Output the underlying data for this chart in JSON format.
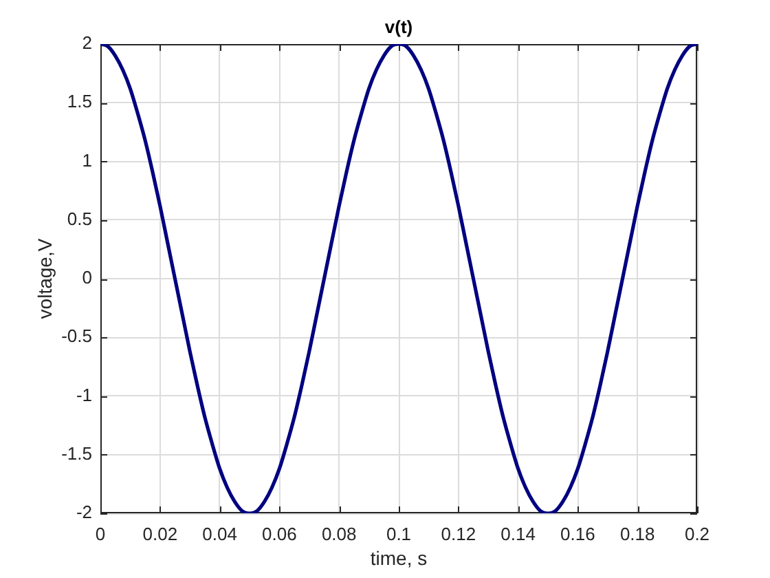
{
  "chart_data": {
    "type": "line",
    "title": "v(t)",
    "xlabel": "time, s",
    "ylabel": "voltage,V",
    "x": [
      0,
      0.0025,
      0.005,
      0.0075,
      0.01,
      0.0125,
      0.015,
      0.0175,
      0.02,
      0.0225,
      0.025,
      0.0275,
      0.03,
      0.0325,
      0.035,
      0.0375,
      0.04,
      0.0425,
      0.045,
      0.0475,
      0.05,
      0.0525,
      0.055,
      0.0575,
      0.06,
      0.0625,
      0.065,
      0.0675,
      0.07,
      0.0725,
      0.075,
      0.0775,
      0.08,
      0.0825,
      0.085,
      0.0875,
      0.09,
      0.0925,
      0.095,
      0.0975,
      0.1,
      0.1025,
      0.105,
      0.1075,
      0.11,
      0.1125,
      0.115,
      0.1175,
      0.12,
      0.1225,
      0.125,
      0.1275,
      0.13,
      0.1325,
      0.135,
      0.1375,
      0.14,
      0.1425,
      0.145,
      0.1475,
      0.15,
      0.1525,
      0.155,
      0.1575,
      0.16,
      0.1625,
      0.165,
      0.1675,
      0.17,
      0.1725,
      0.175,
      0.1775,
      0.18,
      0.1825,
      0.185,
      0.1875,
      0.19,
      0.1925,
      0.195,
      0.1975,
      0.2
    ],
    "series": [
      {
        "color": "#000080",
        "values": [
          2,
          1.98,
          1.9,
          1.78,
          1.62,
          1.41,
          1.18,
          0.91,
          0.62,
          0.31,
          0,
          -0.31,
          -0.62,
          -0.91,
          -1.18,
          -1.41,
          -1.62,
          -1.78,
          -1.9,
          -1.98,
          -2,
          -1.98,
          -1.9,
          -1.78,
          -1.62,
          -1.41,
          -1.18,
          -0.91,
          -0.62,
          -0.31,
          0,
          0.31,
          0.62,
          0.91,
          1.18,
          1.41,
          1.62,
          1.78,
          1.9,
          1.98,
          2,
          1.98,
          1.9,
          1.78,
          1.62,
          1.41,
          1.18,
          0.91,
          0.62,
          0.31,
          0,
          -0.31,
          -0.62,
          -0.91,
          -1.18,
          -1.41,
          -1.62,
          -1.78,
          -1.9,
          -1.98,
          -2,
          -1.98,
          -1.9,
          -1.78,
          -1.62,
          -1.41,
          -1.18,
          -0.91,
          -0.62,
          -0.31,
          0,
          0.31,
          0.62,
          0.91,
          1.18,
          1.41,
          1.62,
          1.78,
          1.9,
          1.98,
          2
        ]
      }
    ],
    "xlim": [
      0,
      0.2
    ],
    "xticks": [
      0,
      0.02,
      0.04,
      0.06,
      0.08,
      0.1,
      0.12,
      0.14,
      0.16,
      0.18,
      0.2
    ],
    "ylim": [
      -2,
      2
    ],
    "yticks": [
      -2,
      -1.5,
      -1,
      -0.5,
      0,
      0.5,
      1,
      1.5,
      2
    ],
    "grid": true
  }
}
